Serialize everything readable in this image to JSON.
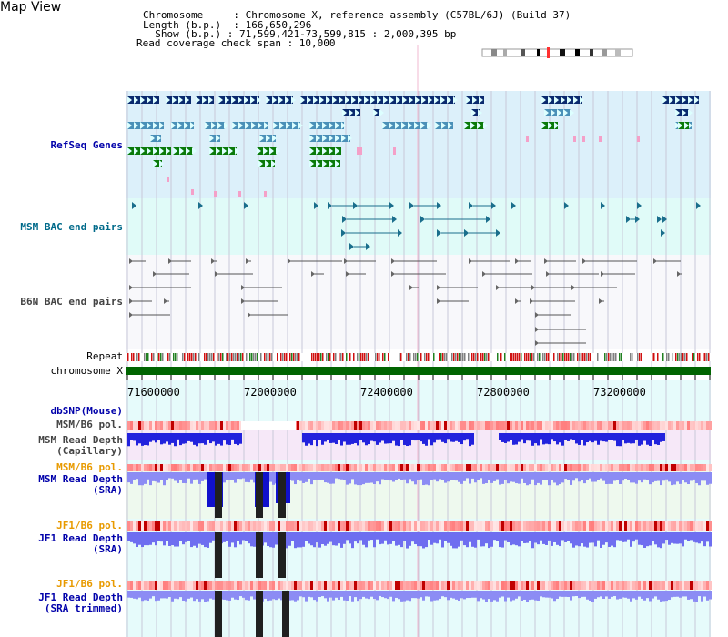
{
  "title": "Map View",
  "info": {
    "line1": "Chromosome     : Chromosome X, reference assembly (C57BL/6J) (Build 37)",
    "line2": "Length (b.p.)  : 166,650,296",
    "line3": "  Show (b.p.) : 71,599,421-73,599,815 : 2,000,395 bp",
    "line4": "Read coverage check span : 10,000"
  },
  "tracks": {
    "refseq": "RefSeq Genes",
    "msm_bac": "MSM BAC end pairs",
    "b6n_bac": "B6N BAC end pairs",
    "repeat": "Repeat",
    "chromosome": "chromosome X",
    "dbsnp": "dbSNP(Mouse)",
    "msm_b6_pol_1": "MSM/B6 pol.",
    "msm_read_depth_cap_1": "MSM Read Depth",
    "msm_read_depth_cap_2": "(Capillary)",
    "msm_b6_pol_2": "MSM/B6 pol.",
    "msm_read_depth_sra_1": "MSM Read Depth",
    "msm_read_depth_sra_2": "(SRA)",
    "jf1_b6_pol_1": "JF1/B6 pol.",
    "jf1_read_depth_sra_1": "JF1 Read Depth",
    "jf1_read_depth_sra_2": "(SRA)",
    "jf1_b6_pol_2": "JF1/B6 pol.",
    "jf1_read_depth_trim_1": "JF1 Read Depth",
    "jf1_read_depth_trim_2": "(SRA trimmed)"
  },
  "axis": {
    "ticks": [
      "71600000",
      "72000000",
      "72400000",
      "72800000",
      "73200000"
    ]
  },
  "colors": {
    "refseq_bg": "#dcf0fa",
    "bac_bg": "#e0fbf8",
    "b6n_bg": "#f8f8fb",
    "chromosome": "#006400",
    "gene_dark": "#0a2a6e",
    "gene_mid": "#4a90b8",
    "gene_green": "#0a7a0a",
    "pol_red": "#e04040",
    "depth_blue": "#1a1adc",
    "depth_light": "#7a7af0"
  }
}
